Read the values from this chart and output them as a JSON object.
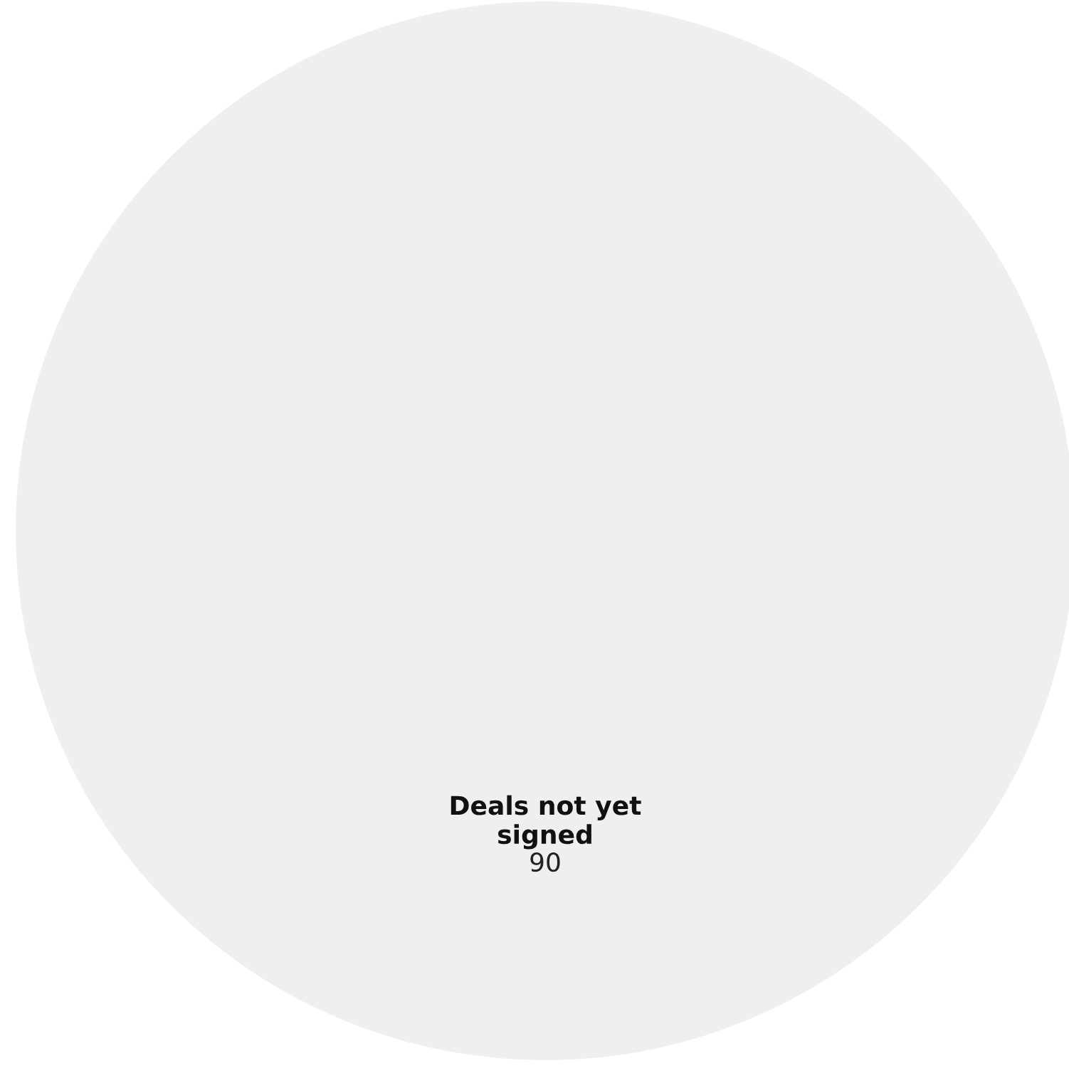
{
  "chart_data": {
    "type": "pie",
    "categories": [
      "Deals not yet signed"
    ],
    "values": [
      90
    ],
    "colors": [
      "#efefef"
    ],
    "data_labels": true,
    "legend": false
  }
}
